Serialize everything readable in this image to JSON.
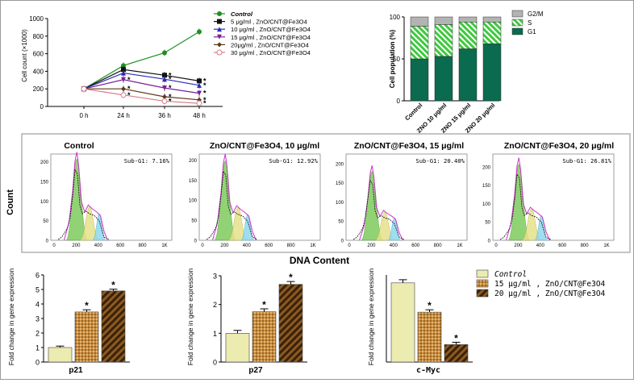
{
  "chart_data": [
    {
      "id": "growth",
      "type": "line",
      "title": "",
      "xlabel": "",
      "ylabel": "Cell count (×1000)",
      "categories": [
        "0 h",
        "24 h",
        "36 h",
        "48 h"
      ],
      "ylim": [
        0,
        1000
      ],
      "yticks": [
        0,
        200,
        400,
        600,
        800,
        1000
      ],
      "series": [
        {
          "name": "Control",
          "color": "#1f8f1f",
          "marker": "circle",
          "values": [
            200,
            465,
            610,
            850
          ],
          "stars": [
            false,
            false,
            false,
            false
          ]
        },
        {
          "name": "5  μg/ml , ZnO/CNT@Fe3O4",
          "color": "#111111",
          "marker": "square",
          "values": [
            200,
            420,
            355,
            290
          ],
          "stars": [
            false,
            false,
            true,
            true
          ]
        },
        {
          "name": "10  μg/ml , ZnO/CNT@Fe3O4",
          "color": "#2a2ab5",
          "marker": "triangle-up",
          "values": [
            200,
            380,
            310,
            240
          ],
          "stars": [
            false,
            false,
            true,
            true
          ]
        },
        {
          "name": "15  μg/ml , ZnO/CNT@Fe3O4",
          "color": "#7a1f9a",
          "marker": "triangle-down",
          "values": [
            200,
            305,
            210,
            150
          ],
          "stars": [
            false,
            true,
            true,
            true
          ]
        },
        {
          "name": "20μg/ml , ZnO/CNT@Fe3O4",
          "color": "#5a3a1a",
          "marker": "diamond",
          "values": [
            200,
            200,
            110,
            75
          ],
          "stars": [
            false,
            true,
            true,
            true
          ]
        },
        {
          "name": "30  μg/ml , ZnO/CNT@Fe3O4",
          "color": "#d77a8a",
          "marker": "circle-open",
          "values": [
            200,
            130,
            60,
            35
          ],
          "stars": [
            false,
            true,
            true,
            true
          ]
        }
      ]
    },
    {
      "id": "cell-cycle",
      "type": "bar",
      "stacked": true,
      "ylabel": "Cell population (%)",
      "categories": [
        "Control",
        "ZNO 10 μg/ml",
        "ZNO 15 μg/ml",
        "ZNO 20 μg/ml"
      ],
      "ylim": [
        0,
        100
      ],
      "yticks": [
        0,
        50,
        100
      ],
      "series": [
        {
          "name": "G1",
          "color": "#0b6b4e",
          "values": [
            50,
            53,
            62,
            68
          ]
        },
        {
          "name": "S",
          "color": "#3ec93e",
          "values": [
            39,
            38,
            32,
            26
          ]
        },
        {
          "name": "G2/M",
          "color": "#b3b3b3",
          "values": [
            11,
            9,
            6,
            6
          ]
        }
      ],
      "legend_order": [
        "G2/M",
        "S",
        "G1"
      ]
    },
    {
      "id": "histograms",
      "type": "area",
      "ylabel": "Count",
      "xlabel": "DNA Content",
      "xticks": [
        "0",
        "200",
        "400",
        "600",
        "800",
        "1K"
      ],
      "panels": [
        {
          "title": "Control",
          "subg1": "Sub-G1: 7.16%",
          "yticks": [
            "0",
            "50",
            "100",
            "150",
            "200"
          ],
          "ymax": 220,
          "peak": 225
        },
        {
          "title": "ZnO/CNT@Fe3O4, 10 μg/ml",
          "subg1": "Sub-G1: 12.92%",
          "yticks": [
            "0",
            "50",
            "100",
            "150",
            "200"
          ],
          "ymax": 215,
          "peak": 215
        },
        {
          "title": "ZnO/CNT@Fe3O4, 15 μg/ml",
          "subg1": "Sub-G1: 20.40%",
          "yticks": [
            "0",
            "50",
            "100",
            "150",
            "200"
          ],
          "ymax": 225,
          "peak": 195
        },
        {
          "title": "ZnO/CNT@Fe3O4, 20 μg/ml",
          "subg1": "Sub-G1: 26.81%",
          "yticks": [
            "0",
            "50",
            "100",
            "150",
            "200"
          ],
          "ymax": 235,
          "peak": 225
        }
      ]
    },
    {
      "id": "p21",
      "type": "bar",
      "xlabel": "p21",
      "ylabel": "Fold change in gene expression",
      "ylim": [
        0,
        6
      ],
      "yticks": [
        0,
        1,
        2,
        3,
        4,
        5,
        6
      ],
      "values": [
        1.0,
        3.45,
        4.9
      ],
      "errors": [
        0.1,
        0.15,
        0.12
      ],
      "stars": [
        false,
        true,
        true
      ]
    },
    {
      "id": "p27",
      "type": "bar",
      "xlabel": "p27",
      "ylabel": "Fold change in gene expression",
      "ylim": [
        0,
        3
      ],
      "yticks": [
        0,
        1,
        2,
        3
      ],
      "values": [
        1.0,
        1.75,
        2.7
      ],
      "errors": [
        0.1,
        0.1,
        0.1
      ],
      "stars": [
        false,
        true,
        true
      ]
    },
    {
      "id": "cmyc",
      "type": "bar",
      "xlabel": "c-Myc",
      "ylabel": "Fold change in gene expression",
      "ylim": [
        0,
        1.1
      ],
      "yticks": [],
      "values": [
        1.0,
        0.63,
        0.22
      ],
      "errors": [
        0.04,
        0.03,
        0.03
      ],
      "stars": [
        false,
        true,
        true
      ],
      "legend": [
        "Control",
        "15  μg/ml , ZnO/CNT@Fe3O4",
        "20  μg/ml , ZnO/CNT@Fe3O4"
      ]
    }
  ],
  "colors": {
    "control_bar": "#ecebb0",
    "dose15_bar": "#b87b2a",
    "dose20_bar": "#8c5a22",
    "hist_green": "#7ecb5e",
    "hist_yellow": "#e6e28a",
    "hist_cyan": "#8fd9ee",
    "hist_outline": "#cc33cc"
  }
}
